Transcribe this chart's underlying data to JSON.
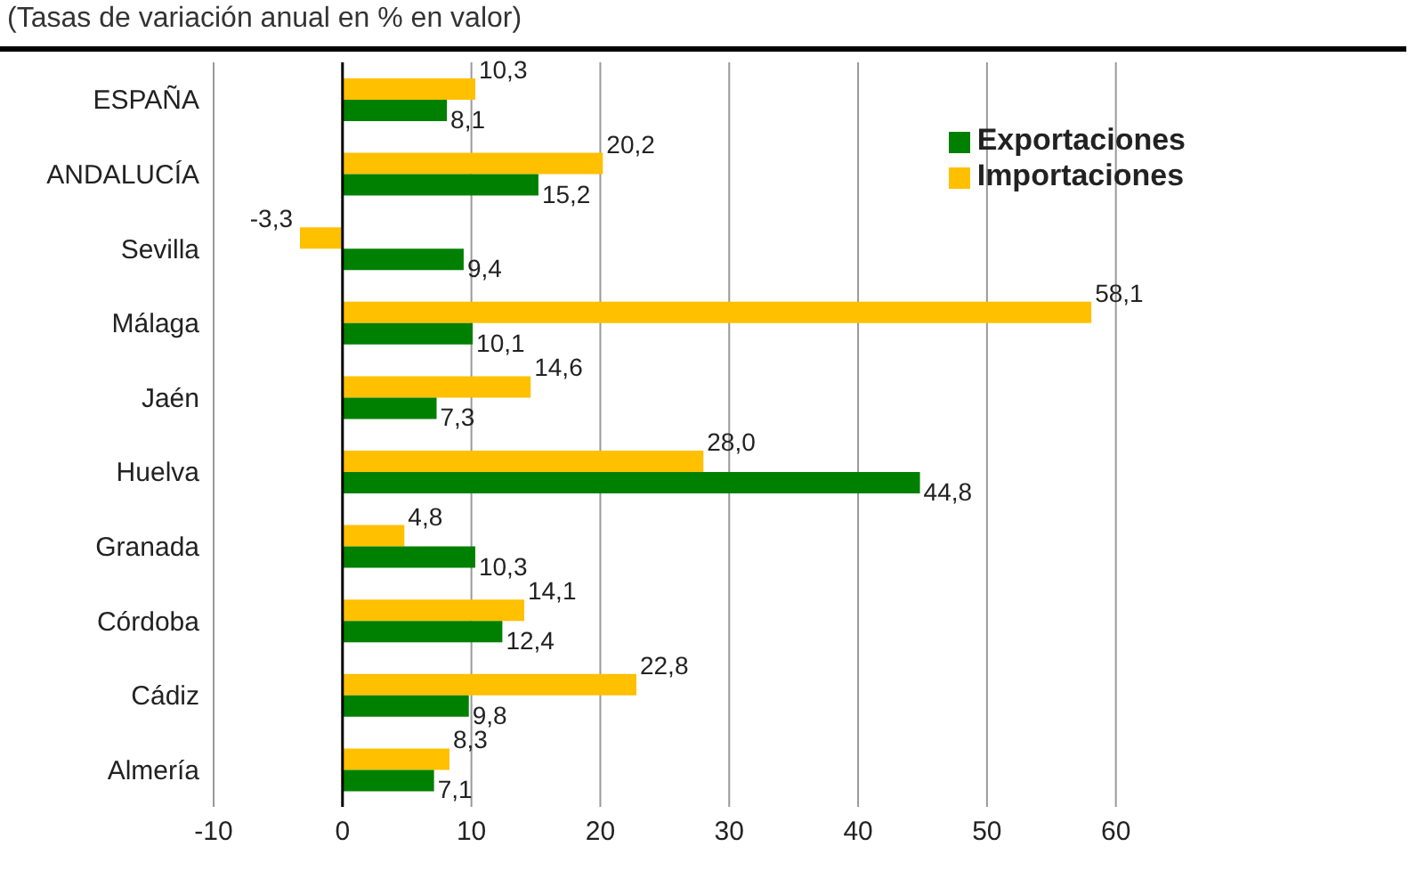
{
  "chart_data": {
    "type": "bar",
    "orientation": "horizontal",
    "title": "(Tasas de variación anual en % en valor)",
    "categories": [
      "ESPAÑA",
      "ANDALUCÍA",
      "Sevilla",
      "Málaga",
      "Jaén",
      "Huelva",
      "Granada",
      "Córdoba",
      "Cádiz",
      "Almería"
    ],
    "series": [
      {
        "name": "Importaciones",
        "color": "#ffc000",
        "values": [
          10.3,
          20.2,
          -3.3,
          58.1,
          14.6,
          28.0,
          4.8,
          14.1,
          22.8,
          8.3
        ],
        "value_labels": [
          "10,3",
          "20,2",
          "-3,3",
          "58,1",
          "14,6",
          "28,0",
          "4,8",
          "14,1",
          "22,8",
          "8,3"
        ]
      },
      {
        "name": "Exportaciones",
        "color": "#008000",
        "values": [
          8.1,
          15.2,
          9.4,
          10.1,
          7.3,
          44.8,
          10.3,
          12.4,
          9.8,
          7.1
        ],
        "value_labels": [
          "8,1",
          "15,2",
          "9,4",
          "10,1",
          "7,3",
          "44,8",
          "10,3",
          "12,4",
          "9,8",
          "7,1"
        ]
      }
    ],
    "xlim": [
      -10,
      60
    ],
    "xticks": [
      -10,
      0,
      10,
      20,
      30,
      40,
      50,
      60
    ],
    "grid": "x",
    "legend": "top right"
  }
}
